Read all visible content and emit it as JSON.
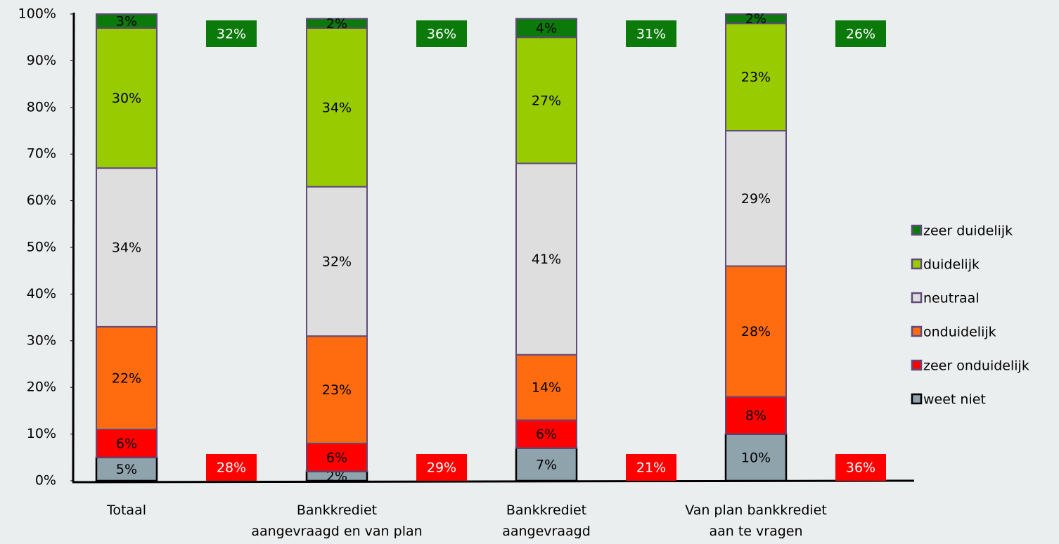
{
  "chart_data": {
    "type": "stacked_bar",
    "categories": [
      [
        "Totaal"
      ],
      [
        "Bankkrediet",
        "aangevraagd en van plan"
      ],
      [
        "Bankkrediet",
        "aangevraagd"
      ],
      [
        "Van plan bankkrediet",
        "aan te vragen"
      ]
    ],
    "series": [
      {
        "name": "weet niet",
        "color": "#8fa3ad",
        "values": [
          5,
          2,
          7,
          10
        ],
        "value_labels": [
          "5%",
          "2%",
          "7%",
          "10%"
        ]
      },
      {
        "name": "zeer onduidelijk",
        "color": "#ff0000",
        "values": [
          6,
          6,
          6,
          8
        ],
        "value_labels": [
          "6%",
          "6%",
          "6%",
          "8%"
        ]
      },
      {
        "name": "onduidelijk",
        "color": "#ff6c0f",
        "values": [
          22,
          23,
          14,
          28
        ],
        "value_labels": [
          "22%",
          "23%",
          "14%",
          "28%"
        ]
      },
      {
        "name": "neutraal",
        "color": "#dedede",
        "values": [
          34,
          32,
          41,
          29
        ],
        "value_labels": [
          "34%",
          "32%",
          "41%",
          "29%"
        ]
      },
      {
        "name": "duidelijk",
        "color": "#99cc00",
        "values": [
          30,
          34,
          27,
          23
        ],
        "value_labels": [
          "30%",
          "34%",
          "27%",
          "23%"
        ]
      },
      {
        "name": "zeer duidelijk",
        "color": "#0b7a0b",
        "values": [
          3,
          2,
          4,
          2
        ],
        "value_labels": [
          "3%",
          "2%",
          "4%",
          "2%"
        ]
      }
    ],
    "top_totals": {
      "color": "#0b7a0b",
      "values": [
        32,
        36,
        31,
        26
      ],
      "value_labels": [
        "32%",
        "36%",
        "31%",
        "26%"
      ]
    },
    "bottom_totals": {
      "color": "#ff0000",
      "values": [
        28,
        29,
        21,
        36
      ],
      "value_labels": [
        "28%",
        "29%",
        "21%",
        "36%"
      ]
    },
    "ylim": [
      0,
      100
    ],
    "yticks": [
      {
        "value": 0,
        "label": "0%"
      },
      {
        "value": 10,
        "label": "10%"
      },
      {
        "value": 20,
        "label": "20%"
      },
      {
        "value": 30,
        "label": "30%"
      },
      {
        "value": 40,
        "label": "40%"
      },
      {
        "value": 50,
        "label": "50%"
      },
      {
        "value": 60,
        "label": "60%"
      },
      {
        "value": 70,
        "label": "70%"
      },
      {
        "value": 80,
        "label": "80%"
      },
      {
        "value": 90,
        "label": "90%"
      },
      {
        "value": 100,
        "label": "100%"
      }
    ],
    "grid": false,
    "legend": "right"
  }
}
